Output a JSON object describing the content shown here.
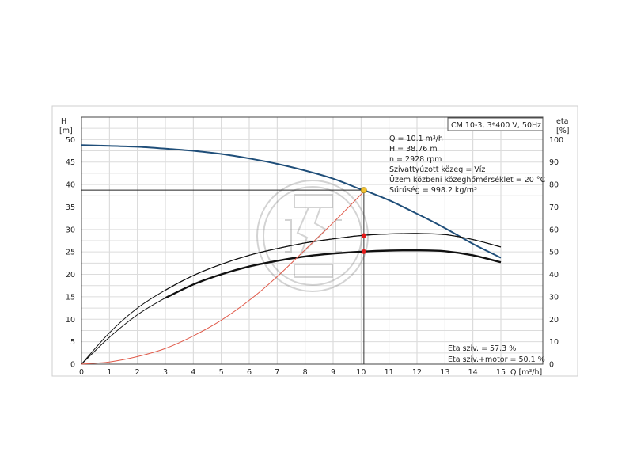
{
  "chart_data": {
    "type": "line",
    "title": "CM 10-3, 3*400 V, 50Hz",
    "xlabel": "Q [m³/h]",
    "ylabel_left": [
      "H",
      "[m]"
    ],
    "ylabel_right": [
      "eta",
      "[%]"
    ],
    "xlim": [
      0,
      16.5
    ],
    "ylim_left": [
      0,
      55
    ],
    "ylim_right": [
      0,
      110
    ],
    "x_ticks": [
      "0",
      "1",
      "2",
      "3",
      "4",
      "5",
      "6",
      "7",
      "8",
      "9",
      "10",
      "11",
      "12",
      "13",
      "14",
      "15"
    ],
    "y_left_ticks": [
      "0",
      "5",
      "10",
      "15",
      "20",
      "25",
      "30",
      "35",
      "40",
      "45",
      "50"
    ],
    "y_right_ticks": [
      "0",
      "10",
      "20",
      "30",
      "40",
      "50",
      "60",
      "70",
      "80",
      "90",
      "100"
    ],
    "grid": true,
    "series": [
      {
        "role": "head",
        "color": "#1f4e79",
        "axis": "left",
        "x": [
          0,
          1,
          2,
          3,
          4,
          5,
          6,
          7,
          8,
          9,
          10,
          10.1,
          11,
          12,
          13,
          14,
          15
        ],
        "y": [
          48.8,
          48.6,
          48.4,
          48.0,
          47.5,
          46.8,
          45.8,
          44.6,
          43.1,
          41.3,
          38.9,
          38.76,
          36.5,
          33.5,
          30.3,
          26.8,
          23.7
        ]
      },
      {
        "role": "efficiency",
        "color": "#111111",
        "axis": "right",
        "x": [
          0,
          1,
          2,
          3,
          4,
          5,
          6,
          7,
          8,
          9,
          10,
          11,
          12,
          13,
          14,
          15
        ],
        "y": [
          0,
          12,
          22,
          29.5,
          35.5,
          40,
          43.5,
          46,
          48,
          49.3,
          50.1,
          50.6,
          50.7,
          50.3,
          48.5,
          45.4
        ]
      },
      {
        "role": "efficiency-motor",
        "color": "#111111",
        "axis": "right",
        "x": [
          0,
          1,
          2,
          3,
          4,
          5,
          6,
          7,
          8,
          9,
          10,
          11,
          12,
          13,
          14,
          15
        ],
        "y": [
          0,
          14,
          25,
          33,
          39.5,
          44.5,
          48.5,
          51.5,
          54,
          55.8,
          57.3,
          58,
          58.2,
          57.7,
          55.5,
          52.2
        ]
      },
      {
        "role": "power",
        "color": "#e05a4a",
        "axis": "left",
        "x": [
          0,
          1,
          2,
          3,
          4,
          5,
          6,
          7,
          8,
          9,
          10,
          10.1
        ],
        "y": [
          0,
          0.5,
          1.7,
          3.5,
          6.3,
          9.8,
          14.2,
          19.5,
          25.5,
          31.5,
          37.8,
          38.4
        ]
      }
    ],
    "operating_point": {
      "q": 10.1,
      "h": 38.76,
      "eta_motor": 50.1,
      "eta_pump": 57.3
    },
    "info_lines": [
      "Q = 10.1 m³/h",
      "H = 38.76 m",
      "n = 2928 rpm",
      "Szivattyúzott közeg = Víz",
      "Üzem közbeni közeghőmérséklet = 20 °C",
      "Sűrűség = 998.2 kg/m³"
    ],
    "eta_lines": [
      "Eta sziv. = 57.3 %",
      "Eta sziv.+motor = 50.1 %"
    ]
  }
}
